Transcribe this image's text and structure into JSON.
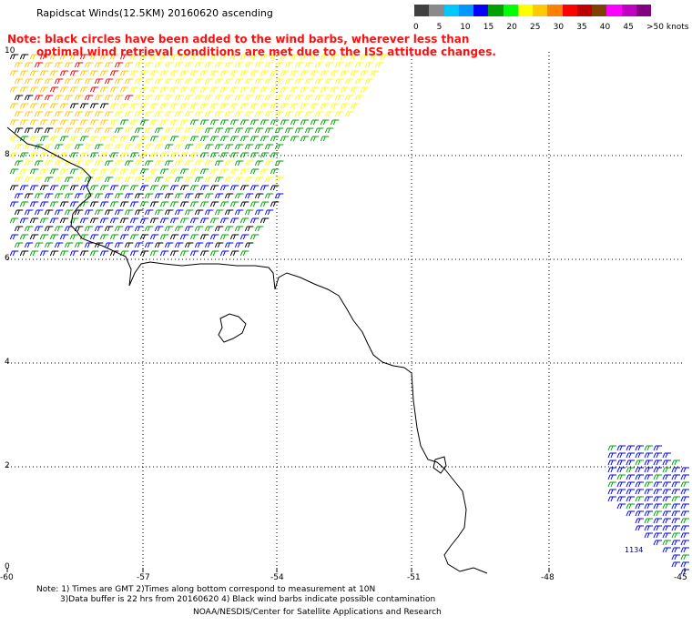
{
  "title": "Rapidscat Winds(12.5KM) 20160620 ascending",
  "note": {
    "line1": "Note: black circles have been added to the wind barbs, wherever less than",
    "line2": "optimal wind retrieval conditions are met due to the ISS attitude changes."
  },
  "legend": {
    "colors": [
      "#404040",
      "#8a8a8a",
      "#00c8ff",
      "#0098ff",
      "#0000ff",
      "#00a000",
      "#00ff00",
      "#ffff00",
      "#ffc800",
      "#ff8000",
      "#ff0000",
      "#c00000",
      "#804000",
      "#ff00ff",
      "#c000c0",
      "#800080"
    ],
    "labels": [
      "0",
      "5",
      "10",
      "15",
      "20",
      "25",
      "30",
      "35",
      "40",
      "45",
      ">50 knots"
    ]
  },
  "axes": {
    "lon_labels": [
      "-60",
      "-57",
      "-54",
      "-51",
      "-48",
      "-45"
    ],
    "lat_labels": [
      "10",
      "8",
      "6",
      "4",
      "2",
      "0"
    ]
  },
  "annotation": "1134",
  "footer": {
    "line1": "Note: 1) Times are GMT 2)Times along bottom correspond to measurement at 10N",
    "line2": "3)Data buffer is 22 hrs from 20160620 4) Black wind barbs indicate possible contamination",
    "line3": "NOAA/NESDIS/Center for Satellite Applications and Research"
  }
}
